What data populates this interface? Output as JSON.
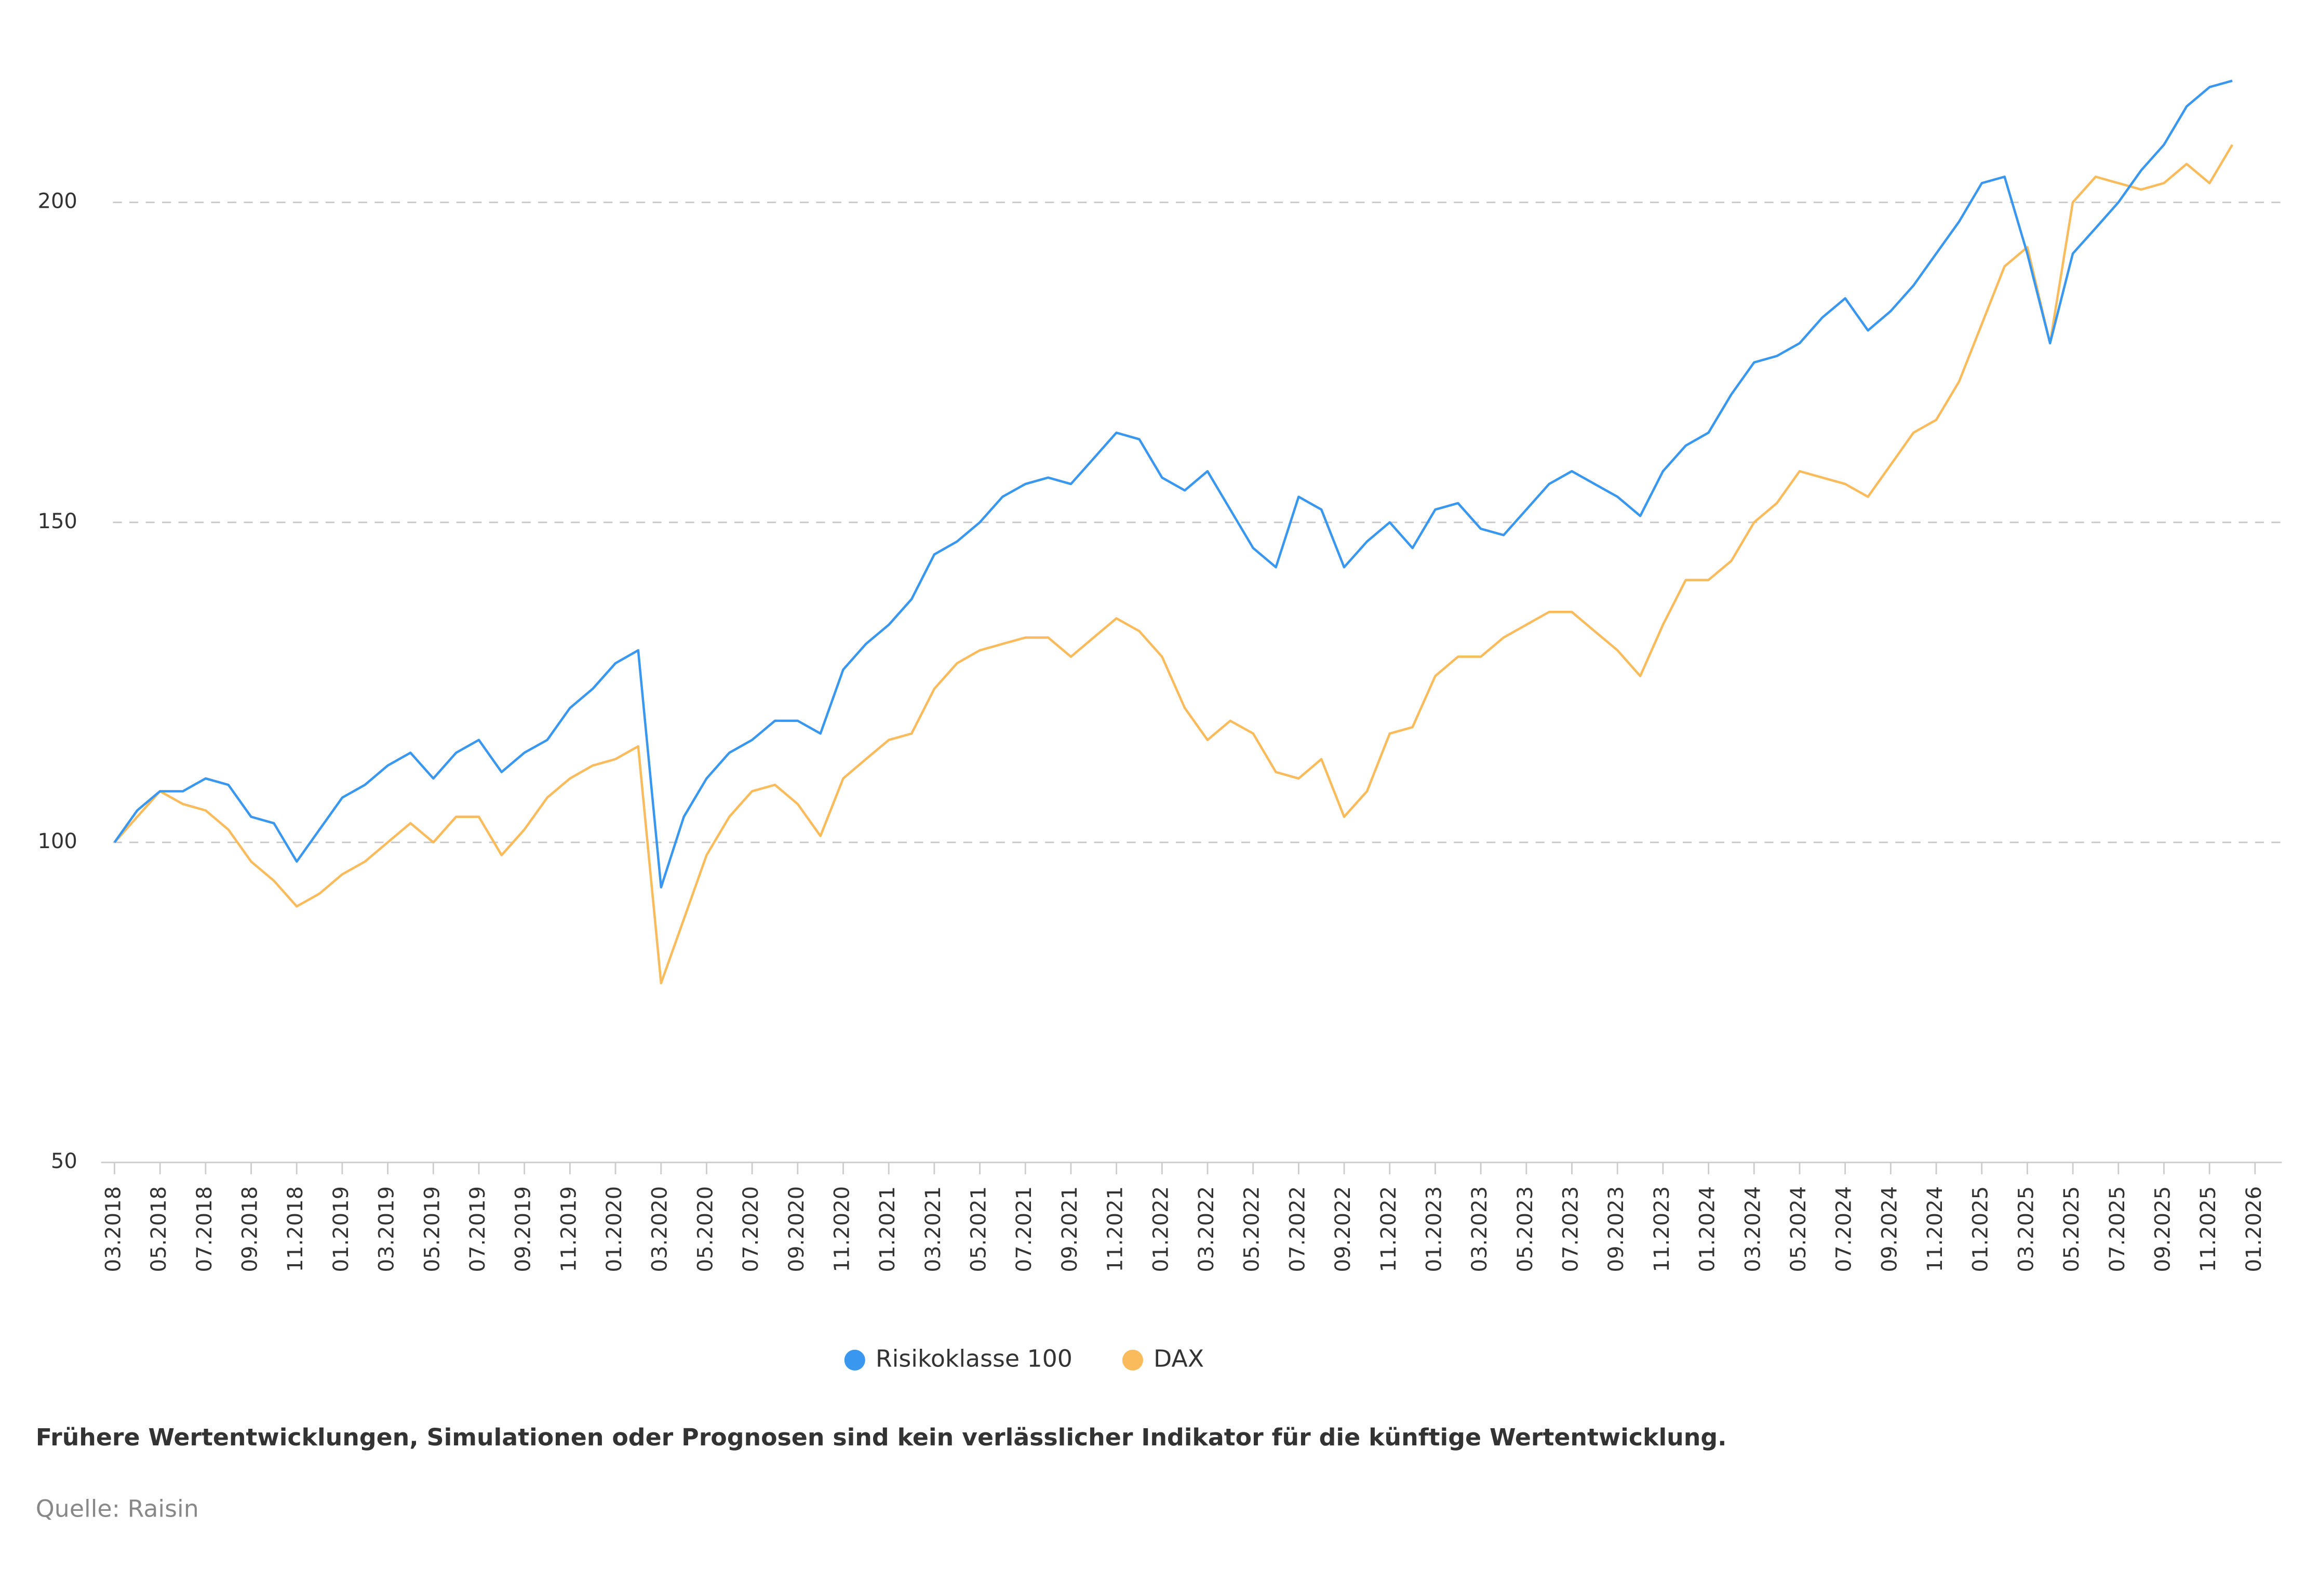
{
  "chart_data": {
    "type": "line",
    "x": [
      "03.2018",
      "04.2018",
      "05.2018",
      "06.2018",
      "07.2018",
      "08.2018",
      "09.2018",
      "10.2018",
      "11.2018",
      "12.2018",
      "01.2019",
      "02.2019",
      "03.2019",
      "04.2019",
      "05.2019",
      "06.2019",
      "07.2019",
      "08.2019",
      "09.2019",
      "10.2019",
      "11.2019",
      "12.2019",
      "01.2020",
      "02.2020",
      "03.2020",
      "04.2020",
      "05.2020",
      "06.2020",
      "07.2020",
      "08.2020",
      "09.2020",
      "10.2020",
      "11.2020",
      "12.2020",
      "01.2021",
      "02.2021",
      "03.2021",
      "04.2021",
      "05.2021",
      "06.2021",
      "07.2021",
      "08.2021",
      "09.2021",
      "10.2021",
      "11.2021",
      "12.2021",
      "01.2022",
      "02.2022",
      "03.2022",
      "04.2022",
      "05.2022",
      "06.2022",
      "07.2022",
      "08.2022",
      "09.2022",
      "10.2022",
      "11.2022",
      "12.2022",
      "01.2023",
      "02.2023",
      "03.2023",
      "04.2023",
      "05.2023",
      "06.2023",
      "07.2023",
      "08.2023",
      "09.2023",
      "10.2023",
      "11.2023",
      "12.2023",
      "01.2024",
      "02.2024",
      "03.2024",
      "04.2024",
      "05.2024",
      "06.2024",
      "07.2024",
      "08.2024",
      "09.2024",
      "10.2024",
      "11.2024",
      "12.2024",
      "01.2025",
      "02.2025",
      "03.2025",
      "04.2025",
      "05.2025",
      "06.2025",
      "07.2025",
      "08.2025",
      "09.2025",
      "10.2025",
      "11.2025",
      "12.2025"
    ],
    "series": [
      {
        "name": "Risikoklasse 100",
        "color": "#3a97f0",
        "values": [
          100,
          105,
          108,
          108,
          110,
          109,
          104,
          103,
          97,
          102,
          107,
          109,
          112,
          114,
          110,
          114,
          116,
          111,
          114,
          116,
          121,
          124,
          128,
          130,
          93,
          104,
          110,
          114,
          116,
          119,
          119,
          117,
          127,
          131,
          134,
          138,
          145,
          147,
          150,
          154,
          156,
          157,
          156,
          160,
          164,
          163,
          157,
          155,
          158,
          152,
          146,
          143,
          154,
          152,
          143,
          147,
          150,
          146,
          152,
          153,
          149,
          148,
          152,
          156,
          158,
          156,
          154,
          151,
          158,
          162,
          164,
          170,
          175,
          176,
          178,
          182,
          185,
          180,
          183,
          187,
          192,
          197,
          203,
          204,
          192,
          178,
          192,
          196,
          200,
          205,
          209,
          215,
          218,
          219
        ]
      },
      {
        "name": "DAX",
        "color": "#f9bb5c",
        "values": [
          100,
          104,
          108,
          106,
          105,
          102,
          97,
          94,
          90,
          92,
          95,
          97,
          100,
          103,
          100,
          104,
          104,
          98,
          102,
          107,
          110,
          112,
          113,
          115,
          78,
          88,
          98,
          104,
          108,
          109,
          106,
          101,
          110,
          113,
          116,
          117,
          124,
          128,
          130,
          131,
          132,
          132,
          129,
          132,
          135,
          133,
          129,
          121,
          116,
          119,
          117,
          111,
          110,
          113,
          104,
          108,
          117,
          118,
          126,
          129,
          129,
          132,
          134,
          136,
          136,
          133,
          130,
          126,
          134,
          141,
          141,
          144,
          150,
          153,
          158,
          157,
          156,
          154,
          159,
          164,
          166,
          172,
          181,
          190,
          193,
          178,
          200,
          204,
          203,
          202,
          203,
          206,
          203,
          209
        ]
      }
    ],
    "xticks": [
      "03.2018",
      "05.2018",
      "07.2018",
      "09.2018",
      "11.2018",
      "01.2019",
      "03.2019",
      "05.2019",
      "07.2019",
      "09.2019",
      "11.2019",
      "01.2020",
      "03.2020",
      "05.2020",
      "07.2020",
      "09.2020",
      "11.2020",
      "01.2021",
      "03.2021",
      "05.2021",
      "07.2021",
      "09.2021",
      "11.2021",
      "01.2022",
      "03.2022",
      "05.2022",
      "07.2022",
      "09.2022",
      "11.2022",
      "01.2023",
      "03.2023",
      "05.2023",
      "07.2023",
      "09.2023",
      "11.2023",
      "01.2024",
      "03.2024",
      "05.2024",
      "07.2024",
      "09.2024",
      "11.2024",
      "01.2025",
      "03.2025",
      "05.2025",
      "07.2025",
      "09.2025",
      "11.2025",
      "01.2026"
    ],
    "ylim": [
      50,
      225
    ],
    "yticks": [
      50,
      100,
      150,
      200
    ],
    "grid": true,
    "note": "Frühere Wertentwicklungen, Simulationen oder Prognosen sind kein verlässlicher Indikator für die künftige Wertentwicklung.",
    "source": "Quelle: Raisin"
  }
}
